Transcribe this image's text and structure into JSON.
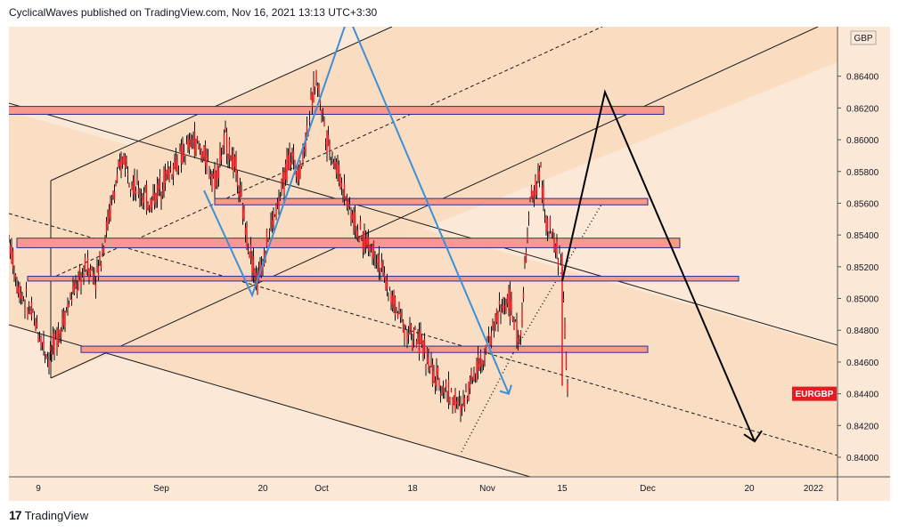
{
  "header": {
    "text": "CyclicalWaves published on TradingView.com, Nov 16, 2021 13:13 UTC+3:30"
  },
  "footer": {
    "logo_mark": "17",
    "logo_text": "TradingView"
  },
  "colors": {
    "background": "#ffffff",
    "plot_bg": "#fce8d7",
    "channel_fill": "#f9dcbf",
    "zone_fill": "#f79a8d",
    "zone_border": "#2a2e8f",
    "candle": "#e31b23",
    "wick": "#111111",
    "blue_path": "#3d8fd6",
    "black_path": "#000000",
    "tag_bg": "#e31b23",
    "tag_text": "#ffffff"
  },
  "chart_data": {
    "type": "line",
    "symbol_tag": "EURGBP",
    "currency_label": "GBP",
    "y_axis": {
      "ticks": [
        "0.86400",
        "0.86200",
        "0.86000",
        "0.85800",
        "0.85600",
        "0.85400",
        "0.85200",
        "0.85000",
        "0.84800",
        "0.84600",
        "0.84400",
        "0.84200",
        "0.84000"
      ]
    },
    "ylim": [
      0.8395,
      0.8668
    ],
    "x_axis": {
      "ticks": [
        "9",
        "Sep",
        "20",
        "Oct",
        "18",
        "Nov",
        "15",
        "Dec",
        "20",
        "2022"
      ]
    },
    "last_price": 0.844,
    "price_series": {
      "name": "",
      "points": [
        [
          "Aug 3",
          0.8545
        ],
        [
          "Aug 5",
          0.851
        ],
        [
          "Aug 8",
          0.8488
        ],
        [
          "Aug 11",
          0.8462
        ],
        [
          "Aug 13",
          0.848
        ],
        [
          "Aug 15",
          0.85
        ],
        [
          "Aug 18",
          0.852
        ],
        [
          "Aug 20",
          0.8515
        ],
        [
          "Aug 23",
          0.8565
        ],
        [
          "Aug 25",
          0.859
        ],
        [
          "Aug 27",
          0.857
        ],
        [
          "Aug 30",
          0.856
        ],
        [
          "Sep 2",
          0.8578
        ],
        [
          "Sep 5",
          0.859
        ],
        [
          "Sep 7",
          0.86
        ],
        [
          "Sep 9",
          0.859
        ],
        [
          "Sep 11",
          0.8575
        ],
        [
          "Sep 13",
          0.86
        ],
        [
          "Sep 15",
          0.858
        ],
        [
          "Sep 17",
          0.854
        ],
        [
          "Sep 19",
          0.851
        ],
        [
          "Sep 21",
          0.854
        ],
        [
          "Sep 23",
          0.856
        ],
        [
          "Sep 25",
          0.859
        ],
        [
          "Sep 27",
          0.858
        ],
        [
          "Sep 29",
          0.862
        ],
        [
          "Sep 30",
          0.864
        ],
        [
          "Oct 2",
          0.86
        ],
        [
          "Oct 5",
          0.857
        ],
        [
          "Oct 8",
          0.854
        ],
        [
          "Oct 11",
          0.853
        ],
        [
          "Oct 14",
          0.85
        ],
        [
          "Oct 17",
          0.848
        ],
        [
          "Oct 20",
          0.847
        ],
        [
          "Oct 22",
          0.845
        ],
        [
          "Oct 25",
          0.844
        ],
        [
          "Oct 27",
          0.843
        ],
        [
          "Oct 29",
          0.845
        ],
        [
          "Nov 1",
          0.847
        ],
        [
          "Nov 3",
          0.849
        ],
        [
          "Nov 5",
          0.85
        ],
        [
          "Nov 7",
          0.847
        ],
        [
          "Nov 9",
          0.856
        ],
        [
          "Nov 11",
          0.858
        ],
        [
          "Nov 12",
          0.8545
        ],
        [
          "Nov 13",
          0.854
        ],
        [
          "Nov 15",
          0.852
        ],
        [
          "Nov 16",
          0.844
        ]
      ]
    },
    "horizontal_zones": [
      {
        "from": 0.8616,
        "to": 0.8621,
        "start": "Aug 3",
        "end": "Dec 4"
      },
      {
        "from": 0.8559,
        "to": 0.8563,
        "start": "Sep 11",
        "end": "Dec 1"
      },
      {
        "from": 0.8532,
        "to": 0.8538,
        "start": "Aug 5",
        "end": "Dec 7"
      },
      {
        "from": 0.8511,
        "to": 0.8514,
        "start": "Aug 7",
        "end": "Dec 18"
      },
      {
        "from": 0.8466,
        "to": 0.847,
        "start": "Aug 17",
        "end": "Dec 1"
      }
    ],
    "blue_path": [
      [
        "Sep 9",
        0.8568
      ],
      [
        "Sep 18",
        0.8502
      ],
      [
        "Oct 6",
        0.8678
      ],
      [
        "Nov 5",
        0.844
      ]
    ],
    "black_path": [
      [
        "Nov 15",
        0.8511
      ],
      [
        "Nov 23",
        0.863
      ],
      [
        "Dec 21",
        0.841
      ]
    ],
    "grid": false,
    "legend": "none"
  }
}
